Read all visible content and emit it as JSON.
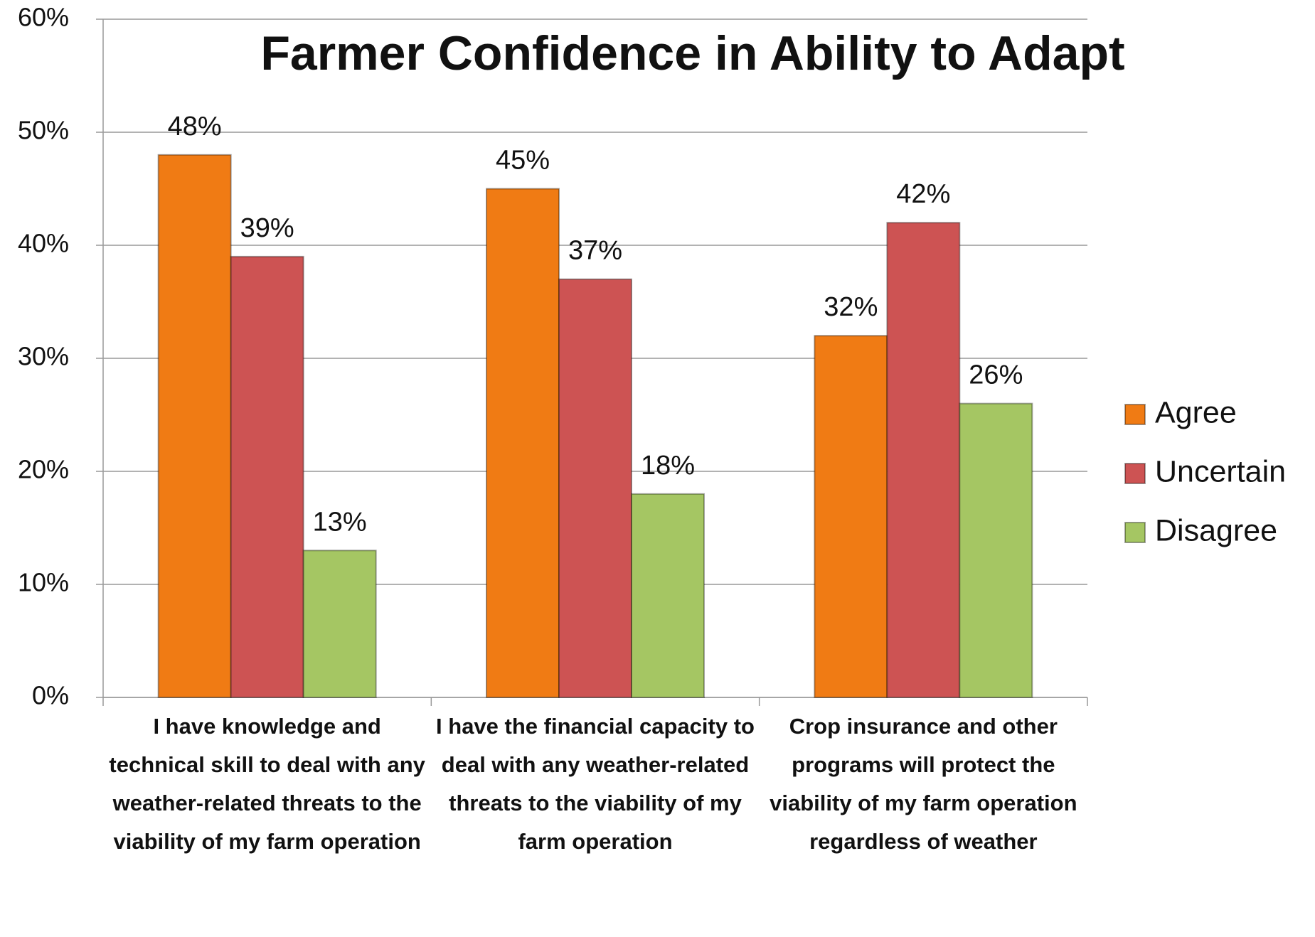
{
  "chart_data": {
    "type": "bar",
    "title": "Farmer Confidence in Ability to Adapt",
    "categories": [
      "I have knowledge and technical skill to deal with any weather-related threats to the viability of my farm operation",
      "I have the financial capacity to deal with any weather-related threats to the viability of my farm operation",
      "Crop insurance and other programs will protect the viability of my farm operation regardless of weather"
    ],
    "series": [
      {
        "name": "Agree",
        "color": "#f07b14",
        "values": [
          48,
          45,
          32
        ],
        "value_labels": [
          "48%",
          "45%",
          "32%"
        ]
      },
      {
        "name": "Uncertain",
        "color": "#cd5353",
        "values": [
          39,
          37,
          42
        ],
        "value_labels": [
          "39%",
          "37%",
          "42%"
        ]
      },
      {
        "name": "Disagree",
        "color": "#a5c663",
        "values": [
          13,
          18,
          26
        ],
        "value_labels": [
          "13%",
          "18%",
          "26%"
        ]
      }
    ],
    "ylim": [
      0,
      60
    ],
    "yticks": [
      {
        "value": 0,
        "label": "0%"
      },
      {
        "value": 10,
        "label": "10%"
      },
      {
        "value": 20,
        "label": "20%"
      },
      {
        "value": 30,
        "label": "30%"
      },
      {
        "value": 40,
        "label": "40%"
      },
      {
        "value": 50,
        "label": "50%"
      },
      {
        "value": 60,
        "label": "60%"
      }
    ],
    "grid": true,
    "legend": "right"
  }
}
